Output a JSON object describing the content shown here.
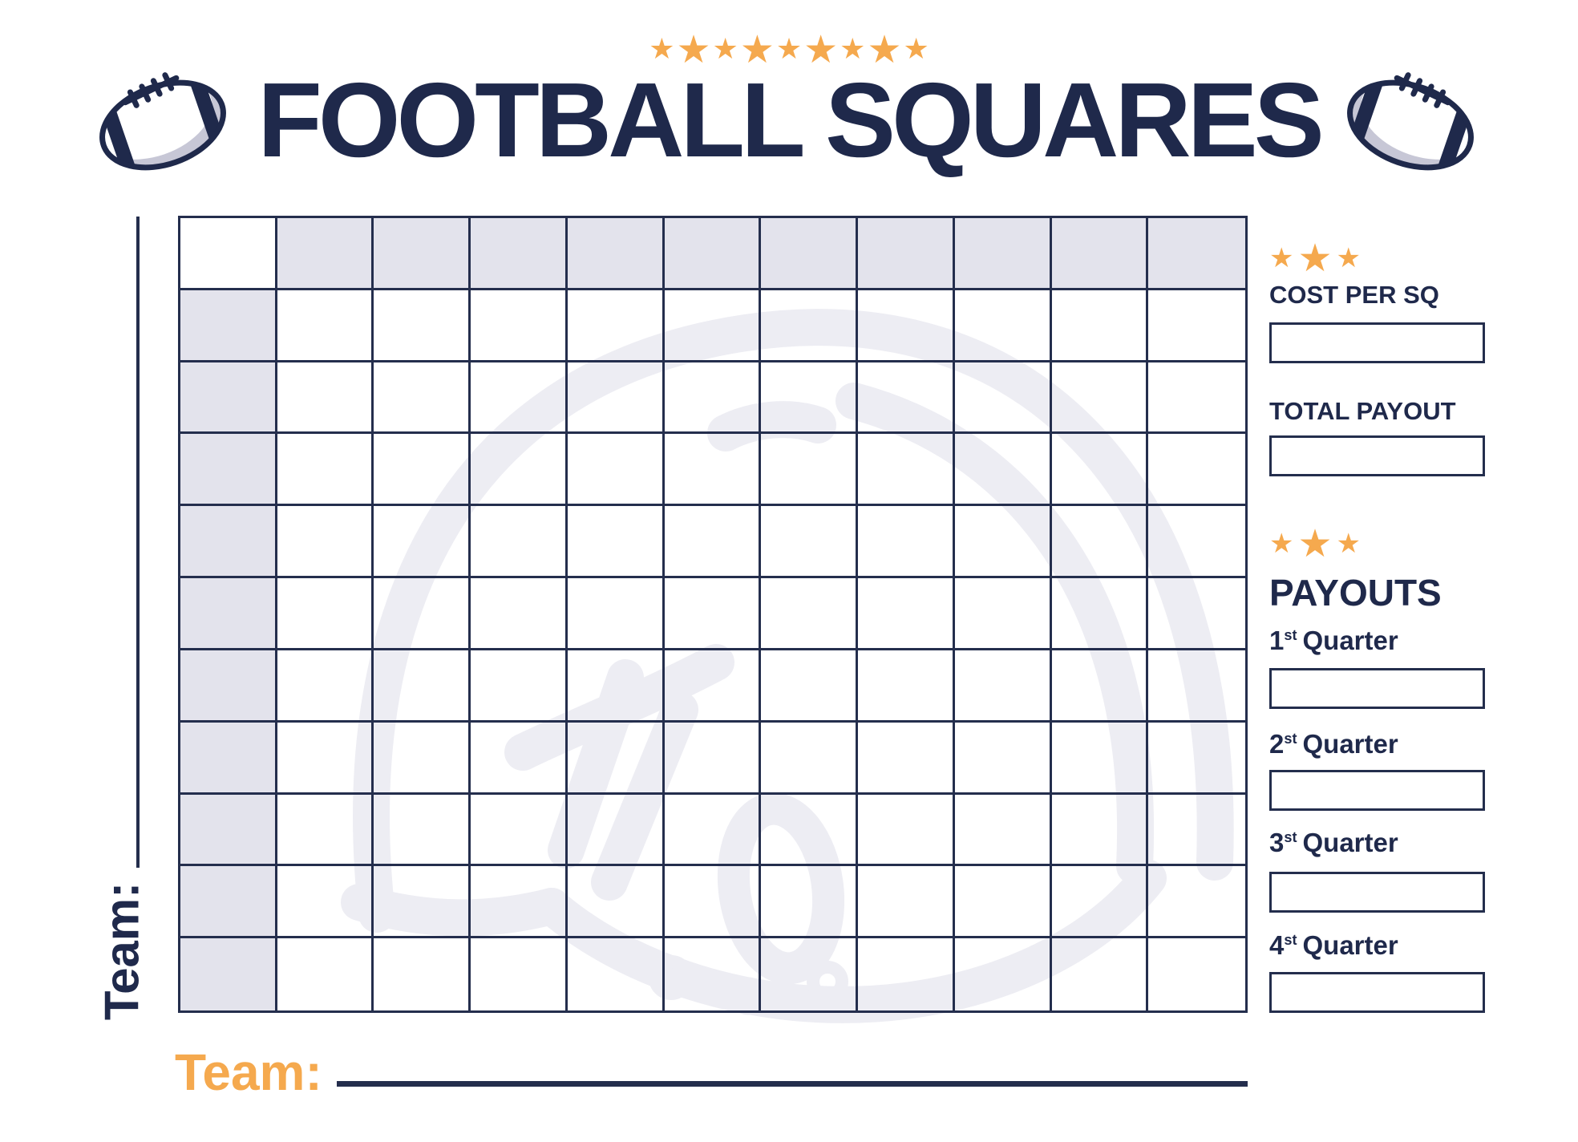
{
  "header": {
    "title": "FOOTBALL SQUARES",
    "star_pattern": [
      "s",
      "l",
      "s",
      "l",
      "s",
      "l",
      "s",
      "l",
      "s"
    ]
  },
  "grid": {
    "rows": 11,
    "cols": 11,
    "shaded_header_row": true,
    "shaded_header_col": true,
    "cells_empty": true
  },
  "team_left": {
    "label": "Team:",
    "value": ""
  },
  "team_bottom": {
    "label": "Team:",
    "value": ""
  },
  "sidebar": {
    "star_pattern": [
      "s",
      "l",
      "s"
    ],
    "cost_label": "COST PER SQ",
    "cost_value": "",
    "total_label": "TOTAL PAYOUT",
    "total_value": "",
    "payouts_title": "PAYOUTS",
    "quarters": [
      {
        "num": "1",
        "suffix": "st",
        "word": "Quarter",
        "value": ""
      },
      {
        "num": "2",
        "suffix": "st",
        "word": "Quarter",
        "value": ""
      },
      {
        "num": "3",
        "suffix": "st",
        "word": "Quarter",
        "value": ""
      },
      {
        "num": "4",
        "suffix": "st",
        "word": "Quarter",
        "value": ""
      }
    ]
  },
  "icons": {
    "star_glyph": "★",
    "football": "football-icon",
    "helmet": "helmet-watermark-icon"
  },
  "colors": {
    "navy": "#1F294B",
    "line": "#242E4D",
    "orange": "#F5A94E",
    "shade": "#E3E3EC",
    "watermark": "#EDEDF3",
    "football_gray": "#C7C7D6",
    "paper": "#FFFFFF"
  }
}
